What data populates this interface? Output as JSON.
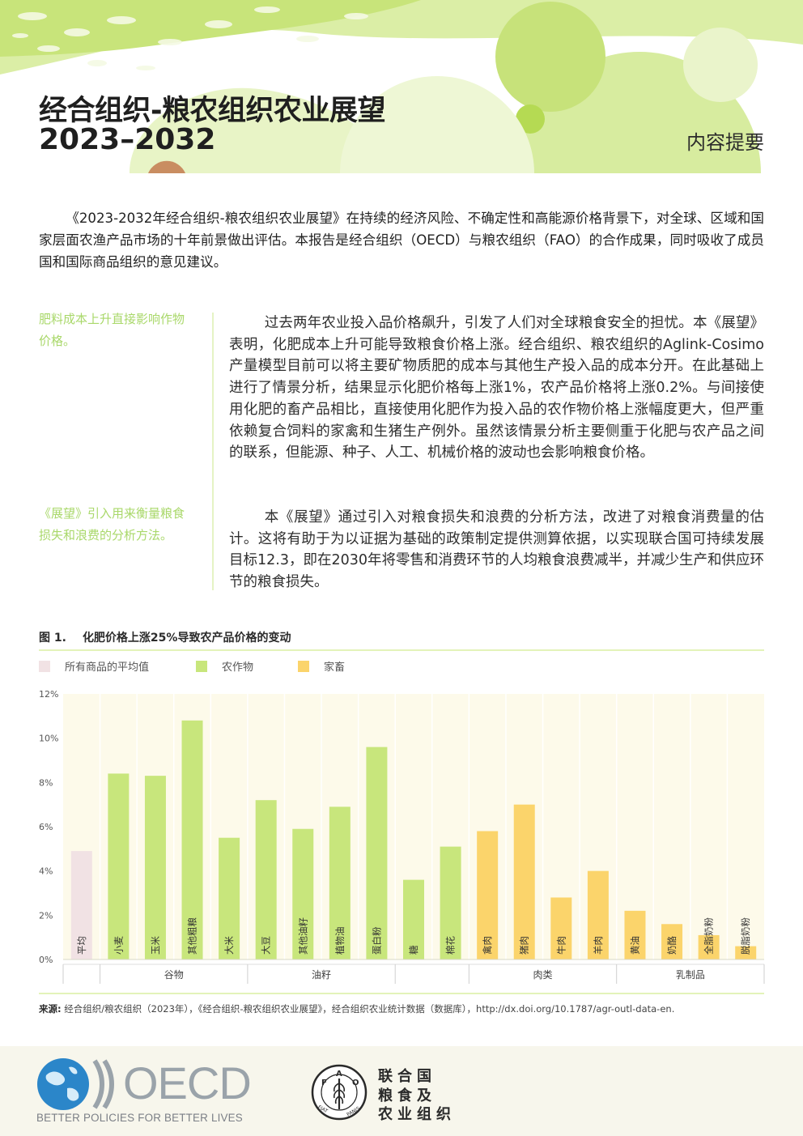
{
  "header": {
    "title_line1": "经合组织-粮农组织农业展望",
    "title_line2": "2023–2032",
    "subtitle": "内容提要"
  },
  "intro": "《2023-2032年经合组织-粮农组织农业展望》在持续的经济风险、不确定性和高能源价格背景下，对全球、区域和国家层面农渔产品市场的十年前景做出评估。本报告是经合组织（OECD）与粮农组织（FAO）的合作成果，同时吸收了成员国和国际商品组织的意见建议。",
  "sidenotes": [
    "肥料成本上升直接影响作物价格。",
    "《展望》引入用来衡量粮食损失和浪费的分析方法。"
  ],
  "paragraphs": [
    "过去两年农业投入品价格飙升，引发了人们对全球粮食安全的担忧。本《展望》表明，化肥成本上升可能导致粮食价格上涨。经合组织、粮农组织的Aglink-Cosimo 产量模型目前可以将主要矿物质肥的成本与其他生产投入品的成本分开。在此基础上进行了情景分析，结果显示化肥价格每上涨1%，农产品价格将上涨0.2%。与间接使用化肥的畜产品相比，直接使用化肥作为投入品的农作物价格上涨幅度更大，但严重依赖复合饲料的家禽和生猪生产例外。虽然该情景分析主要侧重于化肥与农产品之间的联系，但能源、种子、人工、机械价格的波动也会影响粮食价格。",
    "本《展望》通过引入对粮食损失和浪费的分析方法，改进了对粮食消费量的估计。这将有助于为以证据为基础的政策制定提供测算依据，以实现联合国可持续发展目标12.3，即在2030年将零售和消费环节的人均粮食浪费减半，并减少生产和供应环节的粮食损失。"
  ],
  "figure": {
    "number": "图 1.",
    "title": "化肥价格上涨25%导致农产品价格的变动",
    "source_label": "来源:",
    "source_text": "经合组织/粮农组织（2023年），《经合组织-粮农组织农业展望》，经合组织农业统计数据（数据库），http://dx.doi.org/10.1787/agr-outl-data-en."
  },
  "chart_data": {
    "type": "bar",
    "ylim": [
      0,
      12
    ],
    "yticks": [
      "0%",
      "2%",
      "4%",
      "6%",
      "8%",
      "10%",
      "12%"
    ],
    "grid": false,
    "legend_placement": "top-left",
    "series": [
      {
        "name": "所有商品的平均值",
        "color": "#f1e2e4"
      },
      {
        "name": "农作物",
        "color": "#c8e67c"
      },
      {
        "name": "家畜",
        "color": "#fbd46b"
      }
    ],
    "groups": [
      {
        "label": "",
        "items": [
          {
            "label": "平均",
            "value": 4.9,
            "series": 0
          }
        ]
      },
      {
        "label": "谷物",
        "items": [
          {
            "label": "小麦",
            "value": 8.4,
            "series": 1
          },
          {
            "label": "玉米",
            "value": 8.3,
            "series": 1
          },
          {
            "label": "其他粗粮",
            "value": 10.8,
            "series": 1
          },
          {
            "label": "大米",
            "value": 5.5,
            "series": 1
          }
        ]
      },
      {
        "label": "油籽",
        "items": [
          {
            "label": "大豆",
            "value": 7.2,
            "series": 1
          },
          {
            "label": "其他油籽",
            "value": 5.9,
            "series": 1
          },
          {
            "label": "植物油",
            "value": 6.9,
            "series": 1
          },
          {
            "label": "蛋白粉",
            "value": 9.6,
            "series": 1
          }
        ]
      },
      {
        "label": "",
        "items": [
          {
            "label": "糖",
            "value": 3.6,
            "series": 1
          },
          {
            "label": "棉花",
            "value": 5.1,
            "series": 1
          }
        ]
      },
      {
        "label": "肉类",
        "items": [
          {
            "label": "禽肉",
            "value": 5.8,
            "series": 2
          },
          {
            "label": "猪肉",
            "value": 7.0,
            "series": 2
          },
          {
            "label": "牛肉",
            "value": 2.8,
            "series": 2
          },
          {
            "label": "羊肉",
            "value": 4.0,
            "series": 2
          }
        ]
      },
      {
        "label": "乳制品",
        "items": [
          {
            "label": "黄油",
            "value": 2.2,
            "series": 2
          },
          {
            "label": "奶酪",
            "value": 1.6,
            "series": 2
          },
          {
            "label": "全脂奶粉",
            "value": 1.1,
            "series": 2
          },
          {
            "label": "脱脂奶粉",
            "value": 0.6,
            "series": 2
          }
        ]
      }
    ]
  },
  "footer": {
    "oecd_word": "OECD",
    "oecd_tagline": "BETTER POLICIES FOR BETTER LIVES",
    "fao_lines": [
      "联合国",
      "粮食及",
      "农业组织"
    ],
    "fao_letters": "FAO",
    "fao_motto": "FIAT PANIS"
  }
}
